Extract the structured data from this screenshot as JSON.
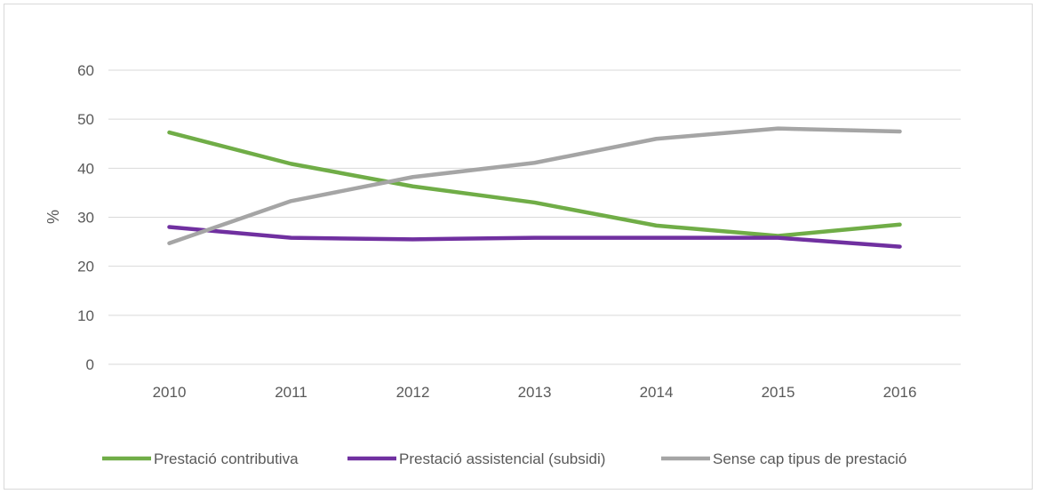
{
  "chart_data": {
    "type": "line",
    "title": "",
    "xlabel": "",
    "ylabel": "%",
    "categories": [
      "2010",
      "2011",
      "2012",
      "2013",
      "2014",
      "2015",
      "2016"
    ],
    "ylim": [
      0,
      60
    ],
    "yticks": [
      "0",
      "10",
      "20",
      "30",
      "40",
      "50",
      "60"
    ],
    "grid": true,
    "legend_position": "bottom",
    "series": [
      {
        "name": "Prestació contributiva",
        "color": "#70ad47",
        "values": [
          47.3,
          40.9,
          36.3,
          33.0,
          28.3,
          26.2,
          28.5
        ]
      },
      {
        "name": "Prestació assistencial (subsidi)",
        "color": "#7030a0",
        "values": [
          28.0,
          25.8,
          25.5,
          25.8,
          25.8,
          25.8,
          24.0
        ]
      },
      {
        "name": "Sense cap tipus de prestació",
        "color": "#a5a5a5",
        "values": [
          24.7,
          33.3,
          38.2,
          41.1,
          46.0,
          48.1,
          47.5
        ]
      }
    ]
  }
}
